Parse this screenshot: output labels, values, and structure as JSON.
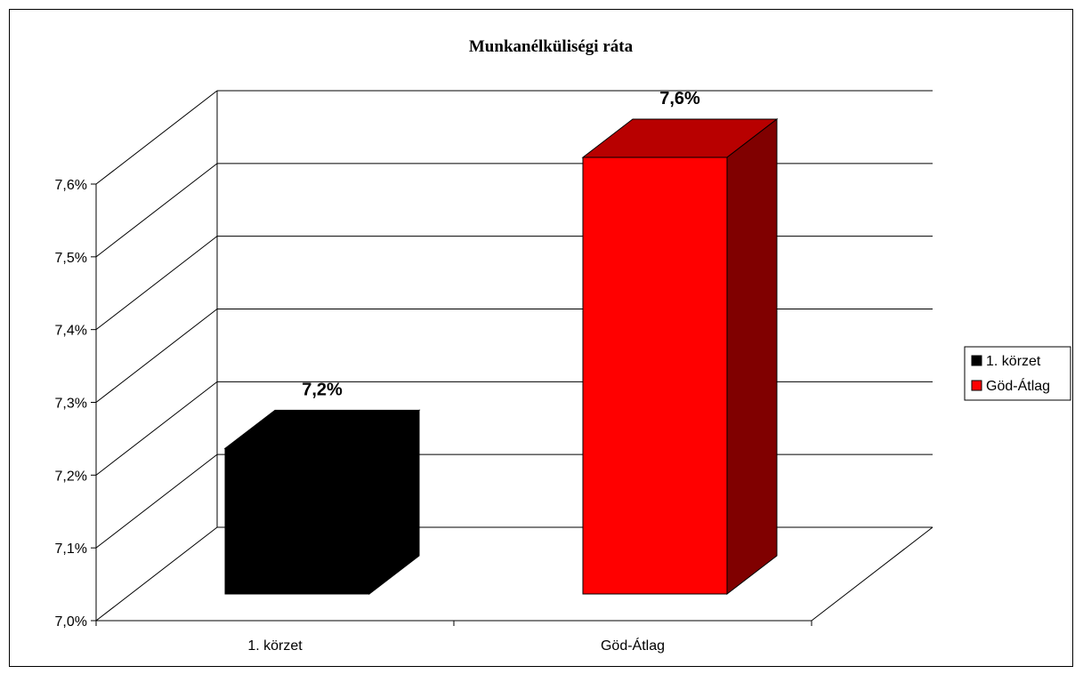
{
  "chart_data": {
    "type": "bar",
    "title": "Munkanélküliségi ráta",
    "xlabel": "",
    "ylabel": "",
    "categories": [
      "1. körzet",
      "Göd-Átlag"
    ],
    "values": [
      7.2,
      7.6
    ],
    "data_labels": [
      "7,2%",
      "7,6%"
    ],
    "bar_colors": [
      "#000000",
      "#ff0000"
    ],
    "ylim": [
      7.0,
      7.6
    ],
    "y_ticks": [
      7.0,
      7.1,
      7.2,
      7.3,
      7.4,
      7.5,
      7.6
    ],
    "y_tick_labels": [
      "7,0%",
      "7,1%",
      "7,2%",
      "7,3%",
      "7,4%",
      "7,5%",
      "7,6%"
    ],
    "grid": true,
    "three_d": true,
    "legend": {
      "position": "right",
      "entries": [
        {
          "label": "1. körzet",
          "color": "#000000"
        },
        {
          "label": "Göd-Átlag",
          "color": "#ff0000"
        }
      ]
    }
  }
}
